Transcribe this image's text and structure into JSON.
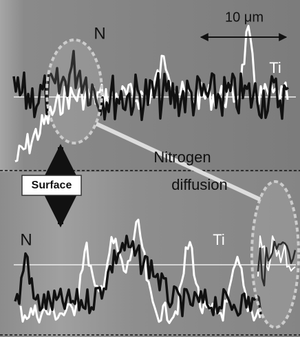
{
  "scale_bar": "10 μm",
  "top_panel": {
    "label_n": "N",
    "label_ti": "Ti"
  },
  "annotation": {
    "line1": "Nitrogen",
    "line2": "diffusion"
  },
  "surface_label": "Surface",
  "bottom_panel": {
    "label_n": "N",
    "label_ti": "Ti"
  }
}
